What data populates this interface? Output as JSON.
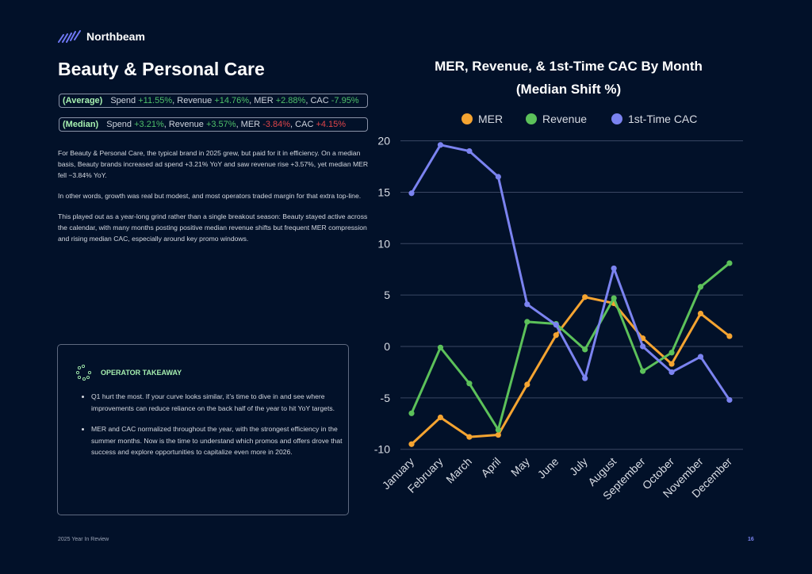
{
  "brand": {
    "name": "Northbeam"
  },
  "page_title": "Beauty & Personal Care",
  "stats": {
    "average": {
      "label": "(Average)",
      "parts": [
        {
          "text": "Spend ",
          "value": "+11.55%",
          "sentiment": "pos"
        },
        {
          "text": ", Revenue ",
          "value": "+14.76%",
          "sentiment": "pos"
        },
        {
          "text": ", MER ",
          "value": "+2.88%",
          "sentiment": "pos"
        },
        {
          "text": ", CAC ",
          "value": "-7.95%",
          "sentiment": "pos"
        }
      ]
    },
    "median": {
      "label": "(Median)",
      "parts": [
        {
          "text": "Spend ",
          "value": "+3.21%",
          "sentiment": "pos"
        },
        {
          "text": ", Revenue ",
          "value": "+3.57%",
          "sentiment": "pos"
        },
        {
          "text": ", MER ",
          "value": "-3.84%",
          "sentiment": "neg"
        },
        {
          "text": ", CAC ",
          "value": "+4.15%",
          "sentiment": "neg"
        }
      ]
    }
  },
  "body": [
    "For Beauty & Personal Care, the typical brand in 2025 grew, but paid for it in efficiency. On a median basis, Beauty brands increased ad spend +3.21% YoY and saw revenue rise +3.57%, yet median MER fell −3.84% YoY.",
    "In other words, growth was real but modest, and most operators traded margin for that extra top-line.",
    "This played out as a year-long grind rather than a single breakout season: Beauty stayed active across the calendar, with many months posting positive median revenue shifts but frequent MER compression and rising median CAC, especially around key promo windows."
  ],
  "takeaway": {
    "title": "OPERATOR TAKEAWAY",
    "icon": "dotted-circle-icon",
    "items": [
      "Q1 hurt the most. If your curve looks similar, it’s time to dive in and see where improvements can reduce reliance on the back half of the year to hit YoY targets.",
      "MER and CAC normalized throughout the year, with the strongest efficiency in the summer months. Now is the time to understand which promos and offers drove that success and explore opportunities to capitalize even more in 2026."
    ]
  },
  "footer": {
    "left": "2025 Year In Review",
    "page": "16"
  },
  "colors": {
    "background": "#021129",
    "positive": "#4fc06a",
    "negative": "#e0454a",
    "accent": "#a6f0b0"
  },
  "chart_data": {
    "type": "line",
    "title": [
      "MER, Revenue, & 1st-Time CAC By Month",
      "(Median Shift %)"
    ],
    "xlabel": "",
    "ylabel": "",
    "categories": [
      "January",
      "February",
      "March",
      "April",
      "May",
      "June",
      "July",
      "August",
      "September",
      "October",
      "November",
      "December"
    ],
    "ylim": [
      -10,
      20
    ],
    "yticks": [
      -10,
      -5,
      0,
      5,
      10,
      15,
      20
    ],
    "grid": "horizontal",
    "legend": "top",
    "series": [
      {
        "name": "MER",
        "color": "#f5a431",
        "values": [
          -9.5,
          -6.9,
          -8.8,
          -8.6,
          -3.7,
          1.1,
          4.8,
          4.2,
          0.8,
          -1.7,
          3.2,
          1.0
        ]
      },
      {
        "name": "Revenue",
        "color": "#5cc15a",
        "values": [
          -6.5,
          -0.1,
          -3.6,
          -8.1,
          2.4,
          2.2,
          -0.3,
          4.7,
          -2.4,
          -0.6,
          5.8,
          8.1
        ]
      },
      {
        "name": "1st-Time CAC",
        "color": "#7b83f0",
        "values": [
          14.9,
          19.6,
          19.0,
          16.5,
          4.1,
          2.1,
          -3.1,
          7.6,
          0.0,
          -2.5,
          -1.0,
          -5.2
        ]
      }
    ]
  }
}
